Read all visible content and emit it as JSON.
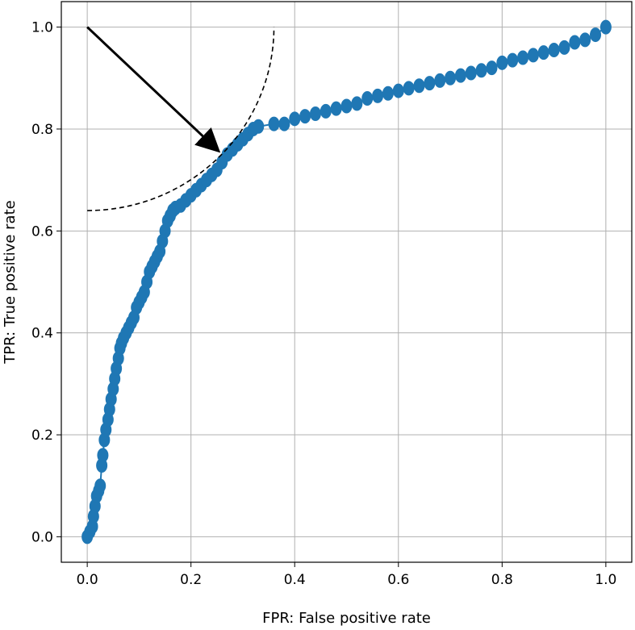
{
  "chart_data": {
    "type": "line",
    "title": "",
    "xlabel": "FPR: False positive rate",
    "ylabel": "TPR: True positive rate",
    "xlim": [
      -0.05,
      1.05
    ],
    "ylim": [
      -0.05,
      1.05
    ],
    "xticks": [
      0.0,
      0.2,
      0.4,
      0.6,
      0.8,
      1.0
    ],
    "yticks": [
      0.0,
      0.2,
      0.4,
      0.6,
      0.8,
      1.0
    ],
    "xtick_labels": [
      "0.0",
      "0.2",
      "0.4",
      "0.6",
      "0.8",
      "1.0"
    ],
    "ytick_labels": [
      "0.0",
      "0.2",
      "0.4",
      "0.6",
      "0.8",
      "1.0"
    ],
    "grid": true,
    "legend": "none",
    "series": [
      {
        "name": "",
        "color": "#1f77b4",
        "marker": "circle",
        "x": [
          0.0,
          0.005,
          0.01,
          0.012,
          0.015,
          0.018,
          0.022,
          0.025,
          0.028,
          0.03,
          0.033,
          0.036,
          0.04,
          0.043,
          0.046,
          0.05,
          0.053,
          0.056,
          0.06,
          0.063,
          0.066,
          0.07,
          0.075,
          0.08,
          0.085,
          0.09,
          0.095,
          0.1,
          0.105,
          0.11,
          0.115,
          0.12,
          0.125,
          0.13,
          0.135,
          0.14,
          0.145,
          0.15,
          0.155,
          0.16,
          0.165,
          0.17,
          0.18,
          0.19,
          0.2,
          0.21,
          0.22,
          0.23,
          0.24,
          0.25,
          0.26,
          0.27,
          0.28,
          0.29,
          0.3,
          0.31,
          0.32,
          0.33,
          0.36,
          0.38,
          0.4,
          0.42,
          0.44,
          0.46,
          0.48,
          0.5,
          0.52,
          0.54,
          0.56,
          0.58,
          0.6,
          0.62,
          0.64,
          0.66,
          0.68,
          0.7,
          0.72,
          0.74,
          0.76,
          0.78,
          0.8,
          0.82,
          0.84,
          0.86,
          0.88,
          0.9,
          0.92,
          0.94,
          0.96,
          0.98,
          1.0
        ],
        "y": [
          0.0,
          0.01,
          0.02,
          0.04,
          0.06,
          0.08,
          0.09,
          0.1,
          0.14,
          0.16,
          0.19,
          0.21,
          0.23,
          0.25,
          0.27,
          0.29,
          0.31,
          0.33,
          0.35,
          0.37,
          0.38,
          0.39,
          0.4,
          0.41,
          0.42,
          0.43,
          0.45,
          0.46,
          0.47,
          0.48,
          0.5,
          0.52,
          0.53,
          0.54,
          0.55,
          0.56,
          0.58,
          0.6,
          0.62,
          0.63,
          0.64,
          0.645,
          0.65,
          0.66,
          0.67,
          0.68,
          0.69,
          0.7,
          0.71,
          0.72,
          0.735,
          0.75,
          0.76,
          0.77,
          0.78,
          0.79,
          0.8,
          0.805,
          0.81,
          0.81,
          0.82,
          0.825,
          0.83,
          0.835,
          0.84,
          0.845,
          0.85,
          0.86,
          0.865,
          0.87,
          0.875,
          0.88,
          0.885,
          0.89,
          0.895,
          0.9,
          0.905,
          0.91,
          0.915,
          0.92,
          0.93,
          0.935,
          0.94,
          0.945,
          0.95,
          0.955,
          0.96,
          0.97,
          0.975,
          0.985,
          1.0
        ]
      }
    ],
    "annotations": [
      {
        "type": "arrow",
        "from": [
          0.0,
          1.0
        ],
        "to": [
          0.25,
          0.76
        ],
        "color": "#000000"
      },
      {
        "type": "dashed-arc",
        "center": [
          0.0,
          1.0
        ],
        "radius": 0.36,
        "color": "#000000"
      }
    ]
  }
}
